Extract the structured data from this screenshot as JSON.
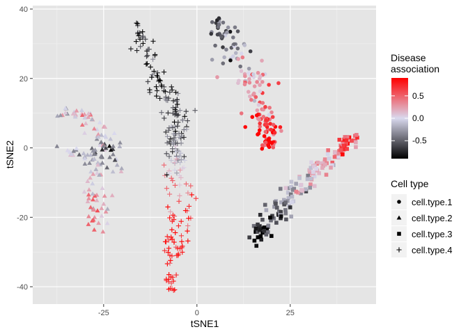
{
  "chart_data": {
    "type": "scatter",
    "title": "",
    "xlabel": "tSNE1",
    "ylabel": "tSNE2",
    "xlim": [
      -44,
      48
    ],
    "ylim": [
      -45,
      41
    ],
    "x_ticks": [
      -25,
      0,
      25
    ],
    "y_ticks": [
      -40,
      -20,
      0,
      20,
      40
    ],
    "grid": true,
    "panel_background": "#E5E5E5",
    "color_legend": {
      "title": "Disease\nassociation",
      "ticks": [
        0.5,
        0.0,
        -0.5
      ],
      "tick_labels": [
        "0.5",
        "0.0",
        "-0.5"
      ],
      "range": [
        -0.9,
        0.9
      ],
      "colors": {
        "low": "#000000",
        "mid": "#D9D9EE",
        "high": "#FF0000"
      }
    },
    "shape_legend": {
      "title": "Cell type",
      "entries": [
        {
          "label": "cell.type.1",
          "shape": "circle"
        },
        {
          "label": "cell.type.2",
          "shape": "triangle"
        },
        {
          "label": "cell.type.3",
          "shape": "square"
        },
        {
          "label": "cell.type.4",
          "shape": "plus"
        }
      ]
    },
    "clusters": [
      {
        "cell_type": "cell.type.4",
        "n": 230,
        "path": [
          [
            -16,
            36
          ],
          [
            -14,
            28
          ],
          [
            -11,
            21
          ],
          [
            -8,
            14
          ],
          [
            -4,
            9
          ],
          [
            -6,
            4
          ],
          [
            -5,
            -2
          ],
          [
            -6,
            -8
          ],
          [
            -4,
            -17
          ],
          [
            -6,
            -26
          ],
          [
            -7,
            -35
          ],
          [
            -7,
            -41
          ]
        ],
        "x_spread": [
          0.5,
          2.5,
          3.5,
          4.0,
          3.0,
          2.5,
          2.5,
          2.8,
          4.0,
          4.0,
          3.0,
          1.0
        ],
        "color_value": [
          -0.85,
          -0.85,
          -0.8,
          -0.7,
          -0.65,
          -0.6,
          -0.4,
          0.3,
          0.75,
          0.85,
          0.85,
          0.8
        ]
      },
      {
        "cell_type": "cell.type.1",
        "n": 170,
        "path": [
          [
            5,
            37
          ],
          [
            9,
            31
          ],
          [
            12,
            24
          ],
          [
            15,
            18
          ],
          [
            17,
            11
          ],
          [
            19,
            5
          ],
          [
            19,
            0
          ]
        ],
        "x_spread": [
          1.5,
          4.0,
          5.0,
          5.0,
          4.5,
          3.0,
          1.5
        ],
        "color_value": [
          -0.75,
          -0.5,
          -0.1,
          0.3,
          0.55,
          0.7,
          0.75
        ]
      },
      {
        "cell_type": "cell.type.2",
        "n": 140,
        "path": [
          [
            -36,
            10
          ],
          [
            -30,
            9
          ],
          [
            -26,
            5
          ],
          [
            -24,
            1
          ],
          [
            -26,
            -3
          ],
          [
            -28,
            -10
          ],
          [
            -27,
            -18
          ],
          [
            -26,
            -23
          ],
          [
            -20,
            -5
          ],
          [
            -36,
            0
          ]
        ],
        "x_spread": [
          2.5,
          3.5,
          3.0,
          3.5,
          4.0,
          3.5,
          3.0,
          1.5,
          2.0,
          2.5
        ],
        "color_value": [
          -0.1,
          0.15,
          0.2,
          -0.55,
          -0.4,
          0.2,
          0.35,
          0.3,
          -0.2,
          -0.25
        ]
      },
      {
        "cell_type": "cell.type.3",
        "n": 170,
        "path": [
          [
            15,
            -27
          ],
          [
            20,
            -20
          ],
          [
            25,
            -14
          ],
          [
            30,
            -9
          ],
          [
            35,
            -4
          ],
          [
            39,
            0
          ],
          [
            42,
            3
          ]
        ],
        "x_spread": [
          2.0,
          3.0,
          3.0,
          2.5,
          2.5,
          2.5,
          1.5
        ],
        "color_value": [
          -0.85,
          -0.65,
          -0.25,
          0.0,
          0.25,
          0.55,
          0.75
        ]
      }
    ]
  }
}
